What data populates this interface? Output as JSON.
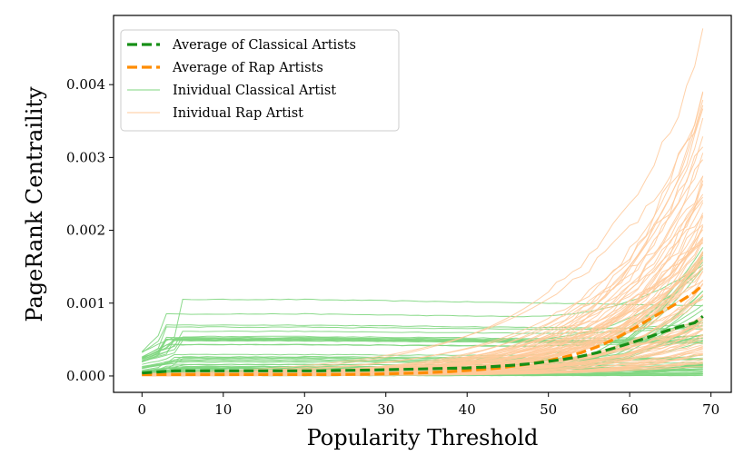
{
  "chart_data": {
    "type": "line",
    "xlabel": "Popularity Threshold",
    "ylabel": "PageRank Centraility",
    "xlim": [
      -3.5,
      72.5
    ],
    "ylim": [
      -0.000225,
      0.00495
    ],
    "xticks": [
      0,
      10,
      20,
      30,
      40,
      50,
      60,
      70
    ],
    "xtick_labels": [
      "0",
      "10",
      "20",
      "30",
      "40",
      "50",
      "60",
      "70"
    ],
    "yticks": [
      0.0,
      0.001,
      0.002,
      0.003,
      0.004
    ],
    "ytick_labels": [
      "0.000",
      "0.001",
      "0.002",
      "0.003",
      "0.004"
    ],
    "grid": false,
    "legend_position": "top-left",
    "legend": [
      {
        "label": "Average of Classical Artists",
        "color": "#168f16",
        "style": "dashed",
        "width": 3.2
      },
      {
        "label": "Average of Rap Artists",
        "color": "#ff8c00",
        "style": "dashed",
        "width": 3.2
      },
      {
        "label": "Inividual Classical Artist",
        "color": "#7fd67f",
        "style": "solid",
        "width": 1
      },
      {
        "label": "Inividual Rap Artist",
        "color": "#ffc99a",
        "style": "solid",
        "width": 1
      }
    ],
    "x": [
      0,
      2,
      4,
      6,
      8,
      10,
      12,
      14,
      16,
      18,
      20,
      22,
      24,
      26,
      28,
      30,
      32,
      34,
      36,
      38,
      40,
      42,
      44,
      46,
      48,
      50,
      52,
      54,
      56,
      58,
      60,
      62,
      64,
      66,
      68,
      69
    ],
    "series": [
      {
        "name": "Average of Classical Artists",
        "color": "#168f16",
        "values": [
          4e-05,
          5.5e-05,
          7e-05,
          7e-05,
          7e-05,
          7e-05,
          7e-05,
          7e-05,
          7e-05,
          7e-05,
          7e-05,
          7e-05,
          7.5e-05,
          7.8e-05,
          8e-05,
          8.5e-05,
          9e-05,
          9.5e-05,
          0.0001,
          0.000105,
          0.00011,
          0.00012,
          0.000135,
          0.00015,
          0.00017,
          0.0002,
          0.00023,
          0.00027,
          0.00032,
          0.00038,
          0.00045,
          0.00052,
          0.0006,
          0.00067,
          0.00073,
          0.00082
        ]
      },
      {
        "name": "Average of Rap Artists",
        "color": "#ff8c00",
        "values": [
          2e-05,
          2e-05,
          2e-05,
          2e-05,
          2e-05,
          2e-05,
          2e-05,
          2e-05,
          2e-05,
          2e-05,
          2e-05,
          2e-05,
          2e-05,
          2.2e-05,
          2.5e-05,
          3e-05,
          3.5e-05,
          4e-05,
          5e-05,
          6e-05,
          7.5e-05,
          9e-05,
          0.00011,
          0.00014,
          0.00017,
          0.00021,
          0.00026,
          0.00032,
          0.0004,
          0.0005,
          0.00062,
          0.00075,
          0.00088,
          0.00101,
          0.00115,
          0.00125
        ]
      }
    ],
    "individual_series": {
      "classical_count": 60,
      "rap_count": 90,
      "classical_color": "#7fd67f",
      "rap_color": "#ffc99a",
      "classical_max_start": 0.00062,
      "classical_plateau_max": 0.00105,
      "rap_max_end": 0.0046
    }
  }
}
